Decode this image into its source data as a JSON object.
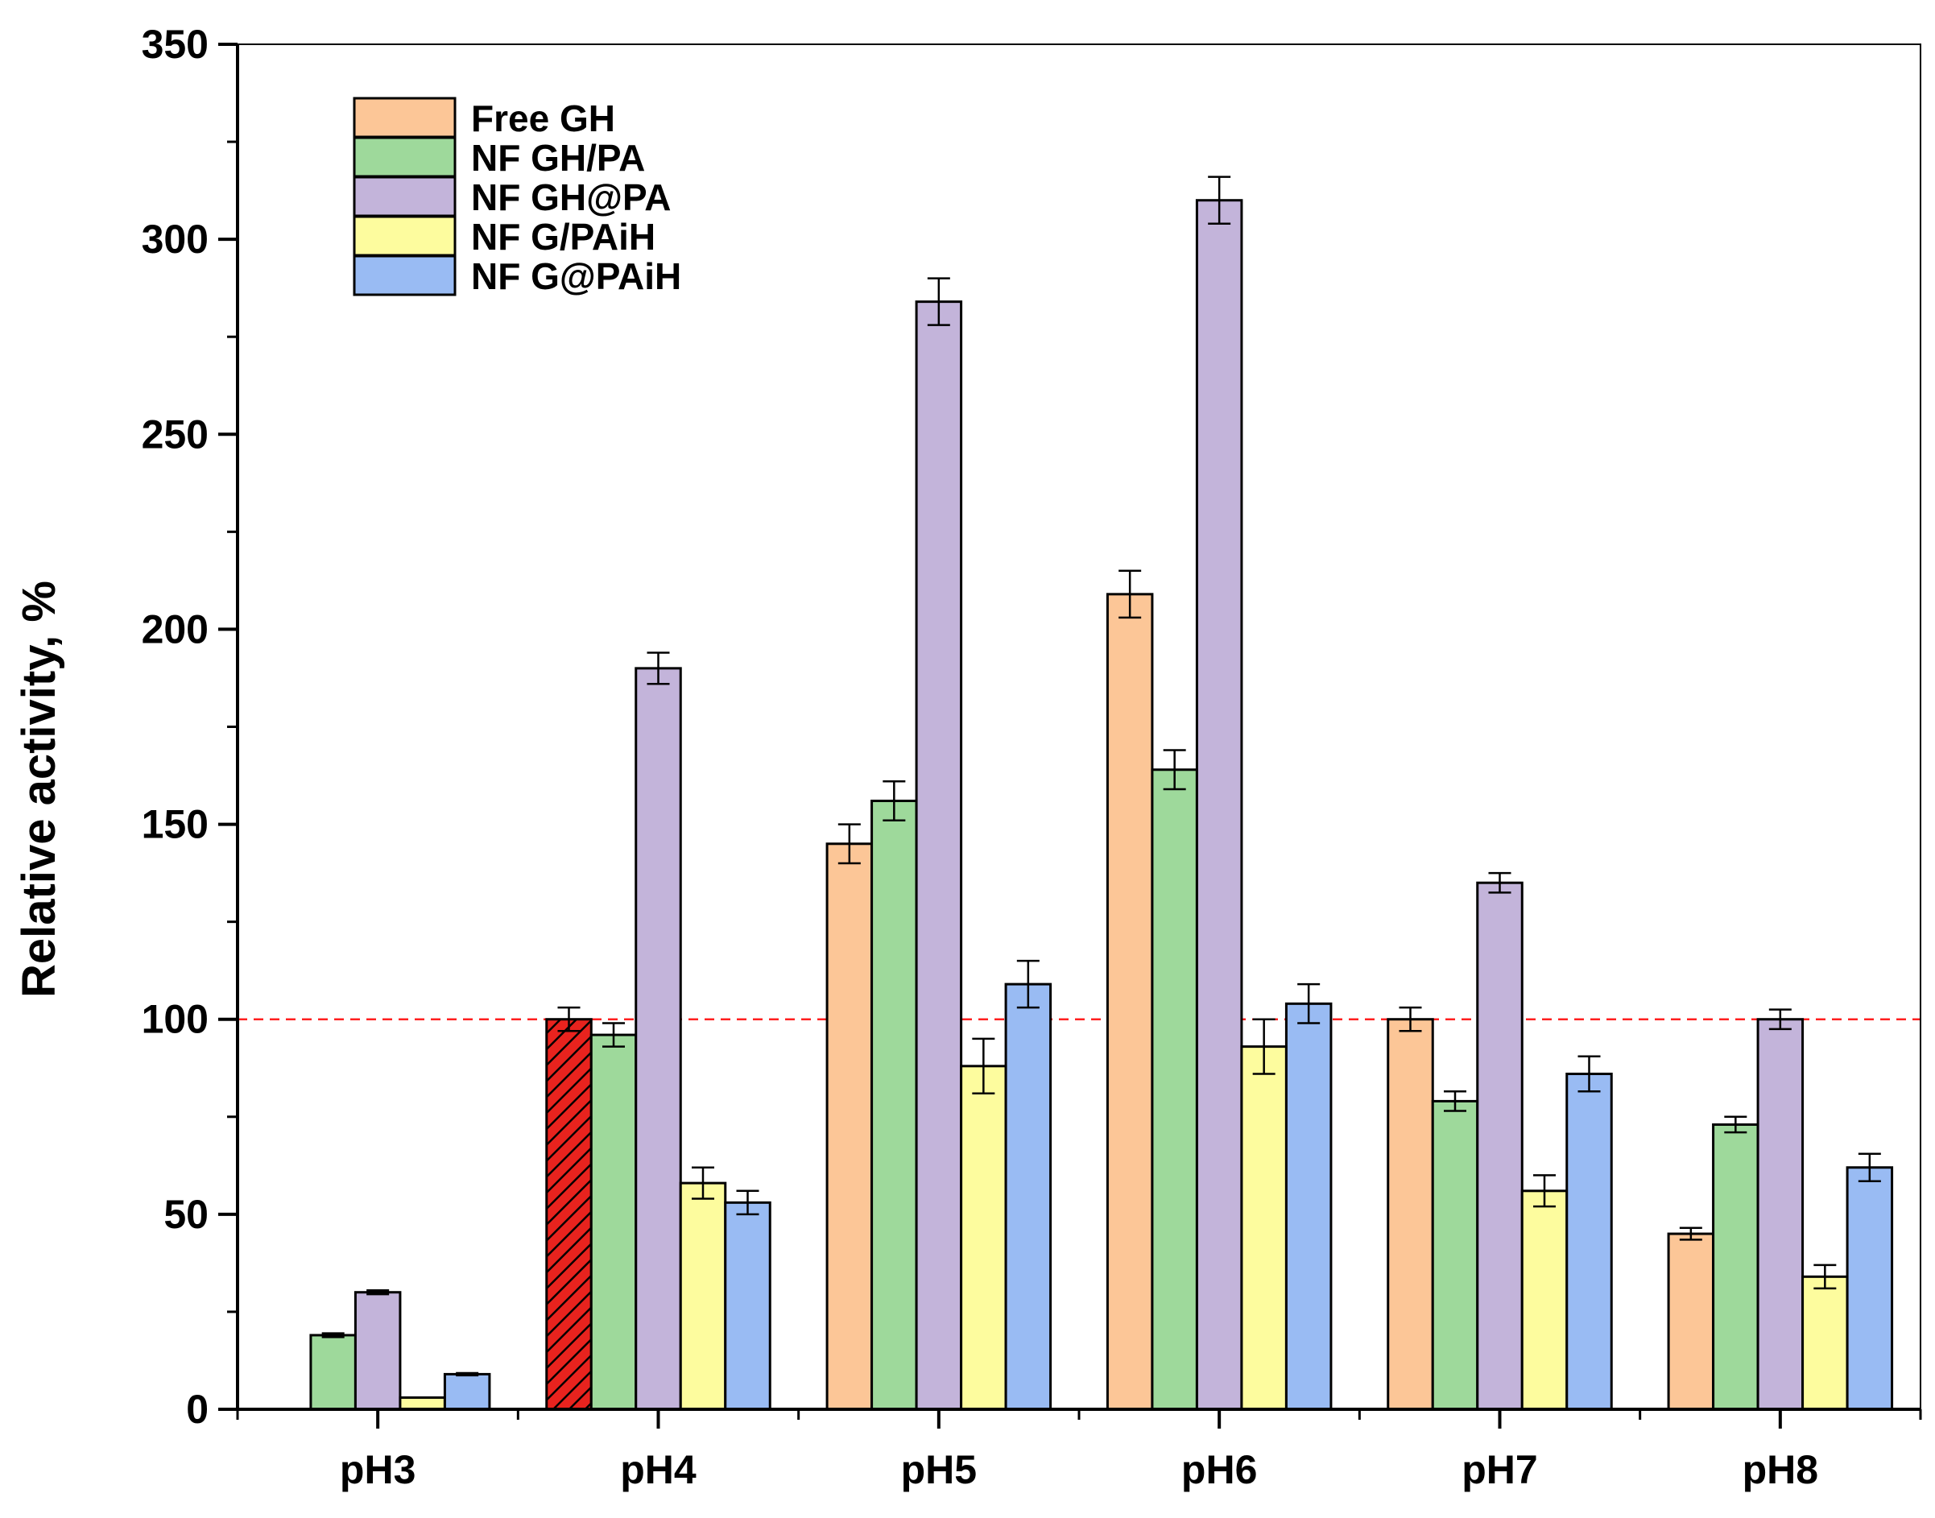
{
  "chart_data": {
    "type": "bar",
    "title": "",
    "xlabel": "",
    "ylabel": "Relative activity, %",
    "ylim": [
      0,
      350
    ],
    "yticks": [
      0,
      50,
      100,
      150,
      200,
      250,
      300,
      350
    ],
    "categories": [
      "pH3",
      "pH4",
      "pH5",
      "pH6",
      "pH7",
      "pH8"
    ],
    "reference_line": {
      "value": 100,
      "style": "dashed",
      "color": "#ff2020"
    },
    "highlight": {
      "series_index": 0,
      "category_index": 1,
      "pattern": "hatched",
      "color": "#e8231e"
    },
    "legend_position": "top-left",
    "series": [
      {
        "name": "Free GH",
        "color": "#fcc697",
        "values": [
          null,
          100,
          145,
          209,
          100,
          45
        ],
        "errors": [
          null,
          3,
          5,
          6,
          3,
          1.5
        ]
      },
      {
        "name": "NF GH/PA",
        "color": "#9ed99b",
        "values": [
          19,
          96,
          156,
          164,
          79,
          73
        ],
        "errors": [
          0.5,
          3,
          5,
          5,
          2.5,
          2
        ]
      },
      {
        "name": "NF GH@PA",
        "color": "#c3b4da",
        "values": [
          30,
          190,
          284,
          310,
          135,
          100
        ],
        "errors": [
          0.5,
          4,
          6,
          6,
          2.5,
          2.5
        ]
      },
      {
        "name": "NF G/PAiH",
        "color": "#fdfc9e",
        "values": [
          3,
          58,
          88,
          93,
          56,
          34
        ],
        "errors": [
          0,
          4,
          7,
          7,
          4,
          3
        ]
      },
      {
        "name": "NF G@PAiH",
        "color": "#99bbf3",
        "values": [
          9,
          53,
          109,
          104,
          86,
          62
        ],
        "errors": [
          0.3,
          3,
          6,
          5,
          4.5,
          3.5
        ]
      }
    ]
  }
}
